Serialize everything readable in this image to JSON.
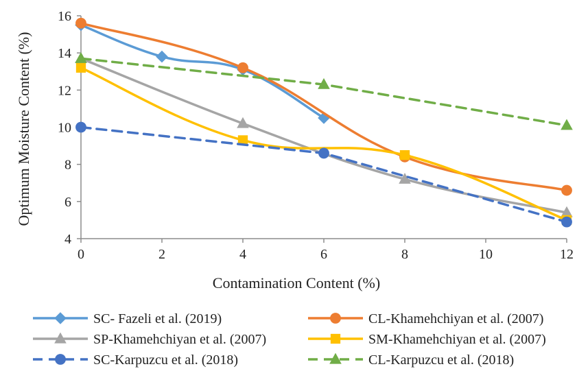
{
  "chart_data": {
    "type": "line",
    "title": "",
    "xlabel": "Contamination Content (%)",
    "ylabel": "Optimum Moisture Content (%)",
    "xlim": [
      0,
      12
    ],
    "ylim": [
      4,
      16
    ],
    "xticks": [
      0,
      2,
      4,
      6,
      8,
      10,
      12
    ],
    "yticks": [
      4,
      6,
      8,
      10,
      12,
      14,
      16
    ],
    "grid": false,
    "legend_position": "bottom",
    "series": [
      {
        "name": "SC- Fazeli et al. (2019)",
        "color": "#5B9BD5",
        "marker": "diamond",
        "dash": "solid",
        "smooth": true,
        "points": [
          [
            0,
            15.5
          ],
          [
            2,
            13.8
          ],
          [
            4,
            13.1
          ],
          [
            6,
            10.5
          ]
        ]
      },
      {
        "name": "CL-Khamehchiyan et al. (2007)",
        "color": "#ED7D31",
        "marker": "circle",
        "dash": "solid",
        "smooth": true,
        "points": [
          [
            0,
            15.6
          ],
          [
            4,
            13.2
          ],
          [
            8,
            8.4
          ],
          [
            12,
            6.6
          ]
        ]
      },
      {
        "name": "SP-Khamehchiyan et al. (2007)",
        "color": "#A5A5A5",
        "marker": "triangle",
        "dash": "solid",
        "smooth": true,
        "points": [
          [
            0,
            13.7
          ],
          [
            4,
            10.2
          ],
          [
            8,
            7.2
          ],
          [
            12,
            5.4
          ]
        ]
      },
      {
        "name": "SM-Khamehchiyan et al. (2007)",
        "color": "#FFC000",
        "marker": "square",
        "dash": "solid",
        "smooth": true,
        "points": [
          [
            0,
            13.2
          ],
          [
            4,
            9.3
          ],
          [
            8,
            8.5
          ],
          [
            12,
            5.0
          ]
        ]
      },
      {
        "name": "SC-Karpuzcu et al. (2018)",
        "color": "#4472C4",
        "marker": "circle",
        "dash": "dashed",
        "smooth": false,
        "points": [
          [
            0,
            10.0
          ],
          [
            6,
            8.6
          ],
          [
            12,
            4.9
          ]
        ]
      },
      {
        "name": "CL-Karpuzcu et al. (2018)",
        "color": "#70AD47",
        "marker": "triangle",
        "dash": "dashed",
        "smooth": false,
        "points": [
          [
            0,
            13.7
          ],
          [
            6,
            12.3
          ],
          [
            12,
            10.1
          ]
        ]
      }
    ]
  }
}
